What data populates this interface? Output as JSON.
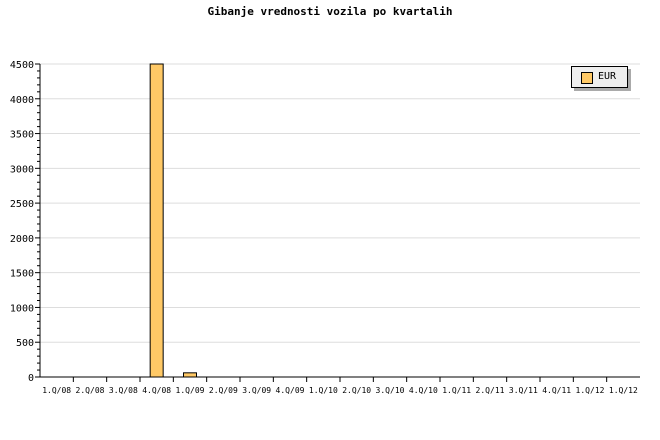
{
  "chart_data": {
    "type": "bar",
    "title": "Gibanje vrednosti vozila po kvartalih",
    "categories": [
      "1.Q/08",
      "2.Q/08",
      "3.Q/08",
      "4.Q/08",
      "1.Q/09",
      "2.Q/09",
      "3.Q/09",
      "4.Q/09",
      "1.Q/10",
      "2.Q/10",
      "3.Q/10",
      "4.Q/10",
      "1.Q/11",
      "2.Q/11",
      "3.Q/11",
      "4.Q/11",
      "1.Q/12",
      "1.Q/12"
    ],
    "series": [
      {
        "name": "EUR",
        "color": "#ffc966",
        "values": [
          0,
          0,
          0,
          4500,
          60,
          0,
          0,
          0,
          0,
          0,
          0,
          0,
          0,
          0,
          0,
          0,
          0,
          0
        ]
      }
    ],
    "ylim": [
      0,
      4500
    ],
    "yticks": [
      0,
      500,
      1000,
      1500,
      2000,
      2500,
      3000,
      3500,
      4000,
      4500
    ],
    "grid": true,
    "legend": "top-right",
    "xlabel": "",
    "ylabel": ""
  }
}
